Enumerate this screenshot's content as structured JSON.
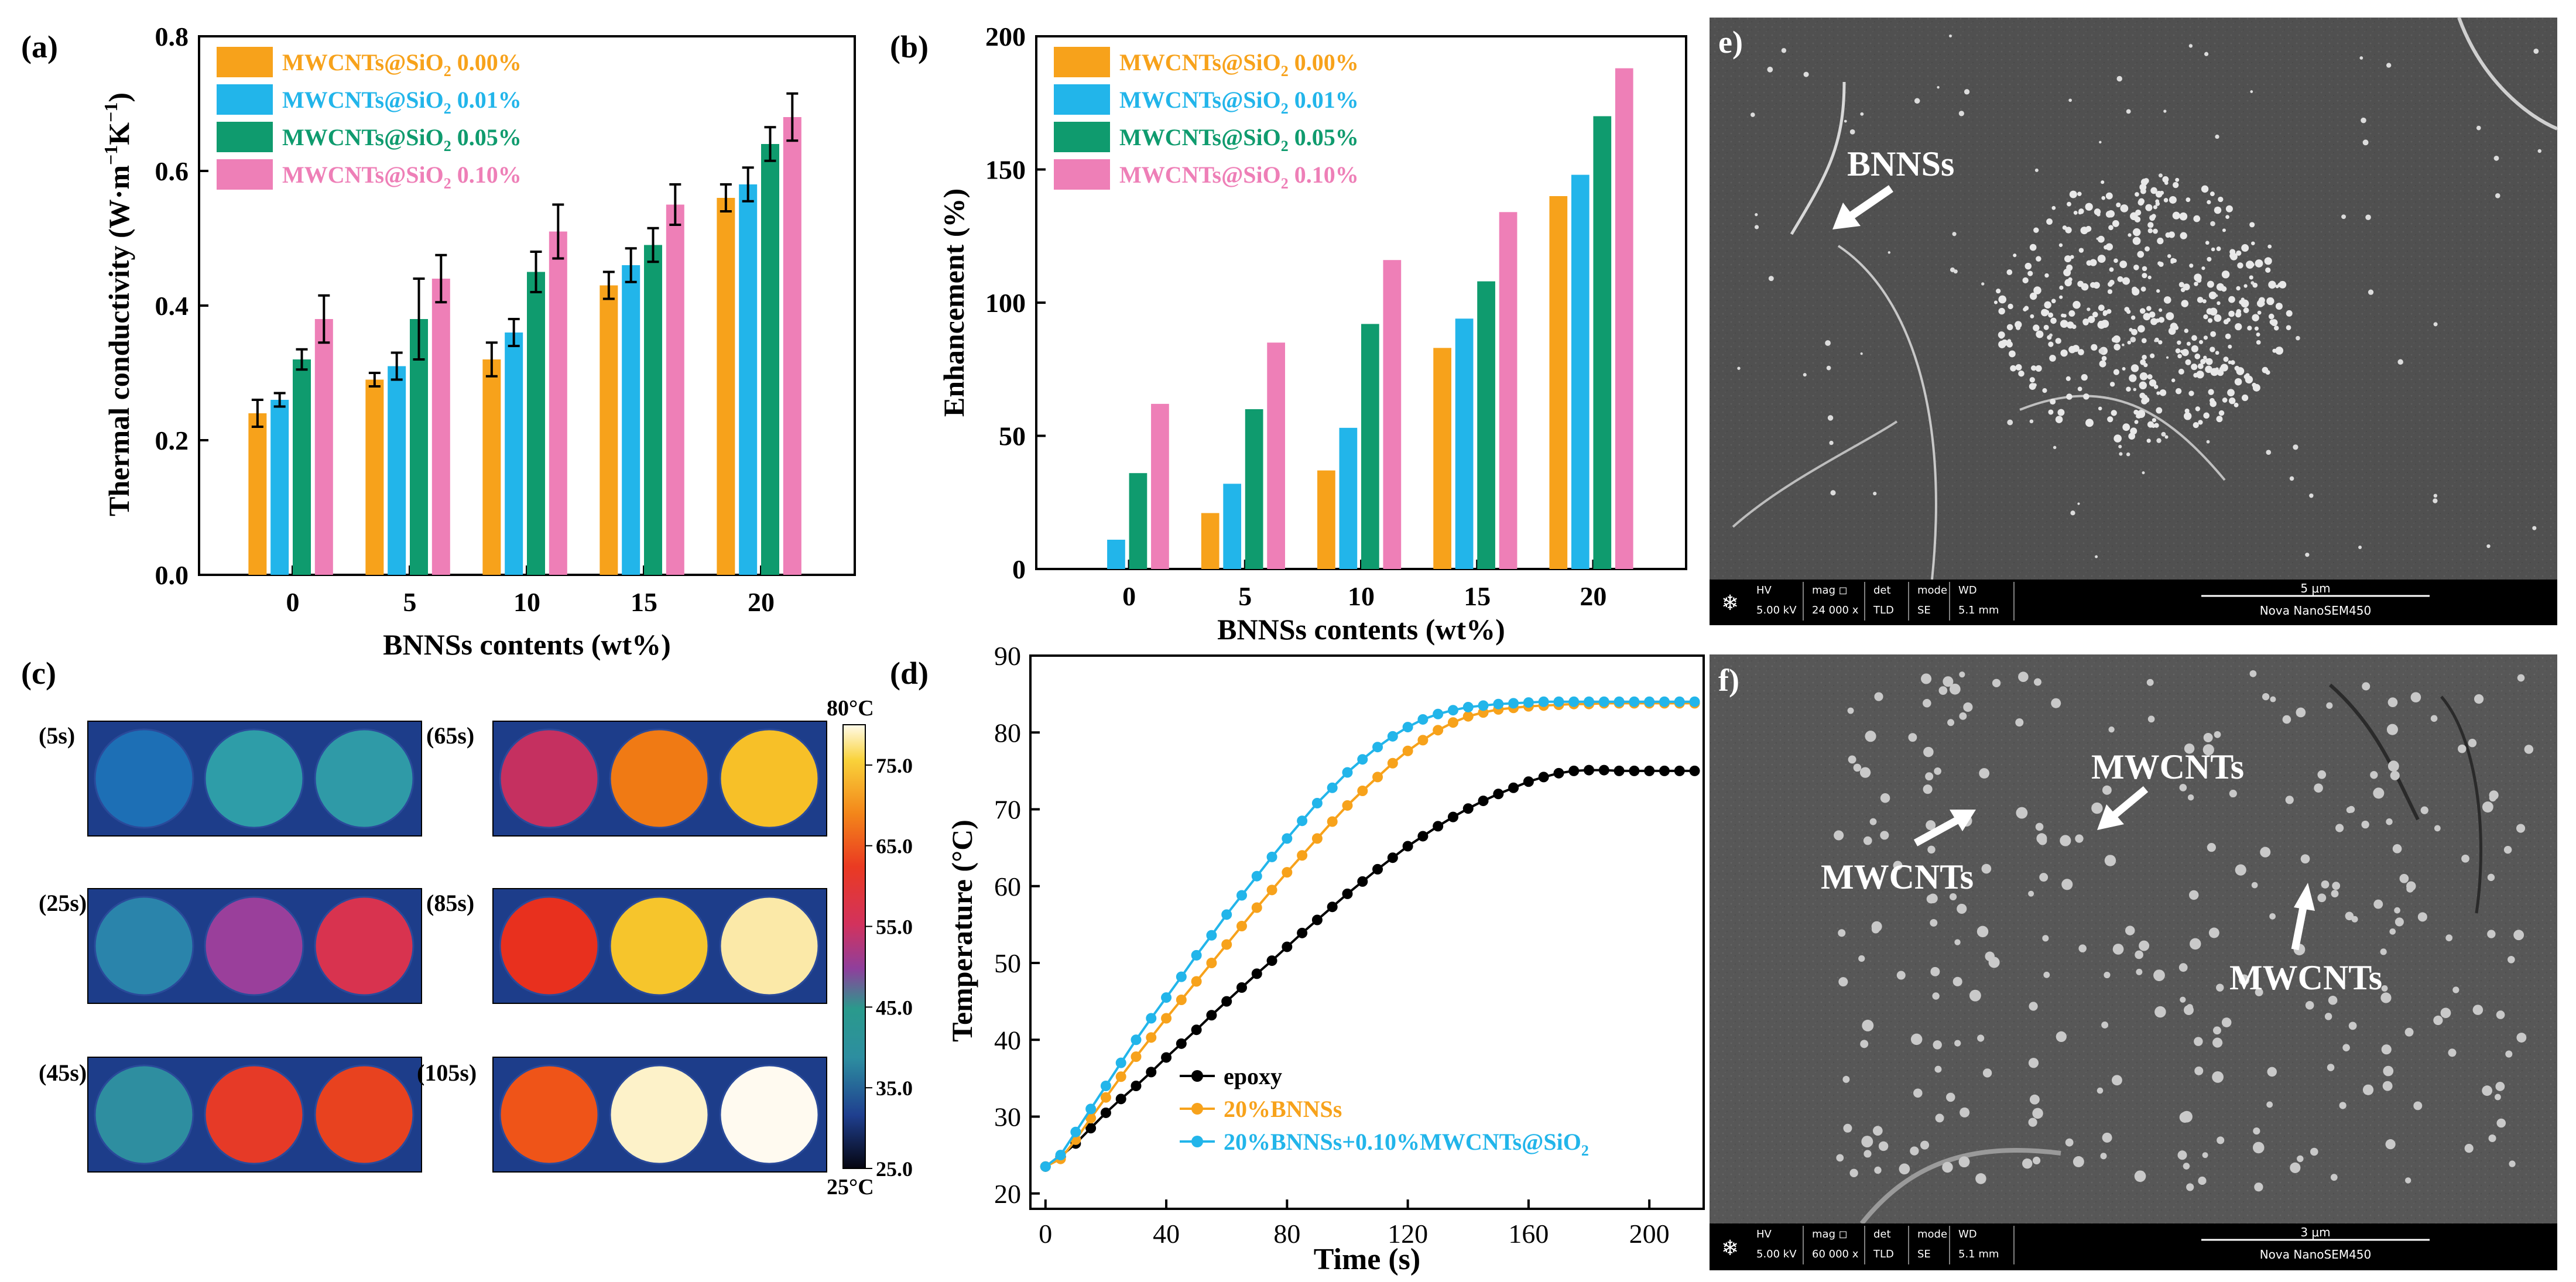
{
  "panel_labels": {
    "a": "(a)",
    "b": "(b)",
    "c": "(c)",
    "d": "(d)",
    "e": "e)",
    "f": "f)"
  },
  "colors": {
    "s0": "#f7a21b",
    "s1": "#22b5ea",
    "s2": "#0f9b6e",
    "s3": "#ee7fb7",
    "epoxy": "#000000",
    "bnns": "#f7a21b",
    "mw": "#22b5ea"
  },
  "chart_data": [
    {
      "id": "a",
      "type": "bar",
      "title": "",
      "xlabel": "BNNSs contents (wt%)",
      "ylabel_parts": [
        "Thermal conductivity (W·m",
        "−1",
        "K",
        "−1",
        ")"
      ],
      "categories": [
        "0",
        "5",
        "10",
        "15",
        "20"
      ],
      "ylim": [
        0,
        0.8
      ],
      "yticks": [
        "0.0",
        "0.2",
        "0.4",
        "0.6",
        "0.8"
      ],
      "legend_position": "top-left",
      "series": [
        {
          "name": "MWCNTs@SiO2 0.00%",
          "label_parts": [
            "MWCNTs@SiO",
            "2",
            " 0.00%"
          ],
          "values": [
            0.24,
            0.29,
            0.32,
            0.43,
            0.56
          ],
          "errors": [
            0.02,
            0.01,
            0.025,
            0.02,
            0.02
          ]
        },
        {
          "name": "MWCNTs@SiO2 0.01%",
          "label_parts": [
            "MWCNTs@SiO",
            "2",
            " 0.01%"
          ],
          "values": [
            0.26,
            0.31,
            0.36,
            0.46,
            0.58
          ],
          "errors": [
            0.01,
            0.02,
            0.02,
            0.025,
            0.025
          ]
        },
        {
          "name": "MWCNTs@SiO2 0.05%",
          "label_parts": [
            "MWCNTs@SiO",
            "2",
            " 0.05%"
          ],
          "values": [
            0.32,
            0.38,
            0.45,
            0.49,
            0.64
          ],
          "errors": [
            0.015,
            0.06,
            0.03,
            0.025,
            0.025
          ]
        },
        {
          "name": "MWCNTs@SiO2 0.10%",
          "label_parts": [
            "MWCNTs@SiO",
            "2",
            " 0.10%"
          ],
          "values": [
            0.38,
            0.44,
            0.51,
            0.55,
            0.68
          ],
          "errors": [
            0.035,
            0.035,
            0.04,
            0.03,
            0.035
          ]
        }
      ]
    },
    {
      "id": "b",
      "type": "bar",
      "title": "",
      "xlabel": "BNNSs contents (wt%)",
      "ylabel": "Enhancement  (%)",
      "categories": [
        "0",
        "5",
        "10",
        "15",
        "20"
      ],
      "ylim": [
        0,
        200
      ],
      "yticks": [
        "0",
        "50",
        "100",
        "150",
        "200"
      ],
      "legend_position": "top-left",
      "series": [
        {
          "name": "MWCNTs@SiO2 0.00%",
          "label_parts": [
            "MWCNTs@SiO",
            "2",
            " 0.00%"
          ],
          "values": [
            0,
            21,
            37,
            83,
            140
          ]
        },
        {
          "name": "MWCNTs@SiO2 0.01%",
          "label_parts": [
            "MWCNTs@SiO",
            "2",
            " 0.01%"
          ],
          "values": [
            11,
            32,
            53,
            94,
            148
          ]
        },
        {
          "name": "MWCNTs@SiO2 0.05%",
          "label_parts": [
            "MWCNTs@SiO",
            "2",
            " 0.05%"
          ],
          "values": [
            36,
            60,
            92,
            108,
            170
          ]
        },
        {
          "name": "MWCNTs@SiO2 0.10%",
          "label_parts": [
            "MWCNTs@SiO",
            "2",
            " 0.10%"
          ],
          "values": [
            62,
            85,
            116,
            134,
            188
          ]
        }
      ]
    },
    {
      "id": "d",
      "type": "line",
      "title": "",
      "xlabel": "Time (s)",
      "ylabel": "Temperature (°C)",
      "xlim": [
        -5,
        218
      ],
      "ylim": [
        18,
        90
      ],
      "xticks": [
        "0",
        "40",
        "80",
        "120",
        "160",
        "200"
      ],
      "yticks": [
        "20",
        "30",
        "40",
        "50",
        "60",
        "70",
        "80",
        "90"
      ],
      "legend_position": "bottom-left",
      "series": [
        {
          "name": "epoxy",
          "label_parts": [
            "epoxy"
          ],
          "x": [
            0,
            5,
            10,
            15,
            20,
            25,
            30,
            35,
            40,
            45,
            50,
            55,
            60,
            65,
            70,
            75,
            80,
            85,
            90,
            95,
            100,
            105,
            110,
            115,
            120,
            125,
            130,
            135,
            140,
            145,
            150,
            155,
            160,
            165,
            170,
            175,
            180,
            185,
            190,
            195,
            200,
            205,
            210,
            215
          ],
          "y": [
            23.5,
            24.8,
            26.5,
            28.5,
            30.5,
            32.3,
            34.0,
            35.8,
            37.7,
            39.5,
            41.3,
            43.2,
            45.0,
            46.8,
            48.6,
            50.3,
            52.1,
            53.9,
            55.6,
            57.3,
            59.0,
            60.6,
            62.2,
            63.7,
            65.2,
            66.5,
            67.8,
            69.0,
            70.1,
            71.1,
            72.0,
            72.8,
            73.6,
            74.2,
            74.7,
            75.0,
            75.1,
            75.1,
            75.0,
            75.0,
            75.0,
            75.0,
            75.0,
            75.0
          ]
        },
        {
          "name": "20%BNNSs",
          "label_parts": [
            "20%BNNSs"
          ],
          "x": [
            0,
            5,
            10,
            15,
            20,
            25,
            30,
            35,
            40,
            45,
            50,
            55,
            60,
            65,
            70,
            75,
            80,
            85,
            90,
            95,
            100,
            105,
            110,
            115,
            120,
            125,
            130,
            135,
            140,
            145,
            150,
            155,
            160,
            165,
            170,
            175,
            180,
            185,
            190,
            195,
            200,
            205,
            210,
            215
          ],
          "y": [
            23.5,
            24.5,
            27.0,
            29.8,
            32.5,
            35.2,
            37.8,
            40.3,
            42.8,
            45.2,
            47.6,
            50.0,
            52.4,
            54.8,
            57.2,
            59.5,
            61.8,
            64.0,
            66.2,
            68.4,
            70.5,
            72.4,
            74.2,
            76.0,
            77.6,
            79.0,
            80.3,
            81.3,
            82.1,
            82.6,
            83.0,
            83.2,
            83.4,
            83.5,
            83.6,
            83.7,
            83.7,
            83.8,
            83.8,
            83.8,
            83.8,
            83.8,
            83.8,
            83.8
          ]
        },
        {
          "name": "20%BNNSs+0.10%MWCNTs@SiO2",
          "label_parts": [
            "20%BNNSs+0.10%MWCNTs@SiO",
            "2",
            ""
          ],
          "x": [
            0,
            5,
            10,
            15,
            20,
            25,
            30,
            35,
            40,
            45,
            50,
            55,
            60,
            65,
            70,
            75,
            80,
            85,
            90,
            95,
            100,
            105,
            110,
            115,
            120,
            125,
            130,
            135,
            140,
            145,
            150,
            155,
            160,
            165,
            170,
            175,
            180,
            185,
            190,
            195,
            200,
            205,
            210,
            215
          ],
          "y": [
            23.5,
            25.0,
            28.0,
            31.0,
            34.0,
            37.0,
            40.0,
            42.8,
            45.5,
            48.2,
            51.0,
            53.6,
            56.3,
            58.8,
            61.3,
            63.8,
            66.2,
            68.5,
            70.8,
            72.8,
            74.8,
            76.5,
            78.1,
            79.5,
            80.7,
            81.7,
            82.4,
            82.9,
            83.3,
            83.5,
            83.7,
            83.8,
            83.9,
            84.0,
            84.0,
            84.0,
            84.0,
            84.0,
            84.0,
            84.0,
            84.0,
            84.0,
            84.0,
            84.0
          ]
        }
      ]
    }
  ],
  "thermal": {
    "times": [
      "(5s)",
      "(25s)",
      "(45s)",
      "(65s)",
      "(85s)",
      "(105s)"
    ],
    "colorbar_top": "80°C",
    "colorbar_bottom": "25°C",
    "colorbar_ticks": [
      "75.0",
      "65.0",
      "55.0",
      "45.0",
      "35.0",
      "25.0"
    ],
    "samples": [
      [
        "#1d6fb5",
        "#2e9da8",
        "#2f9aa7"
      ],
      [
        "#2a84ab",
        "#9a3f9b",
        "#d8334f"
      ],
      [
        "#2e8ea0",
        "#e63a27",
        "#e8421f"
      ],
      [
        "#c53060",
        "#f07a14",
        "#f7c028"
      ],
      [
        "#e8301e",
        "#f6c52c",
        "#fbe9a8"
      ],
      [
        "#ef5418",
        "#fdf2c9",
        "#fffaf0"
      ]
    ]
  },
  "sem_e": {
    "annotation": "BNNSs",
    "info_headers": [
      "HV",
      "mag ◻",
      "det",
      "mode",
      "WD"
    ],
    "info_values": [
      "5.00 kV",
      "24 000 x",
      "TLD",
      "SE",
      "5.1 mm"
    ],
    "scale": "5 μm",
    "instrument": "Nova NanoSEM450"
  },
  "sem_f": {
    "annotations": [
      "MWCNTs",
      "MWCNTs",
      "MWCNTs"
    ],
    "info_headers": [
      "HV",
      "mag ◻",
      "det",
      "mode",
      "WD"
    ],
    "info_values": [
      "5.00 kV",
      "60 000 x",
      "TLD",
      "SE",
      "5.1 mm"
    ],
    "scale": "3 μm",
    "instrument": "Nova NanoSEM450"
  }
}
